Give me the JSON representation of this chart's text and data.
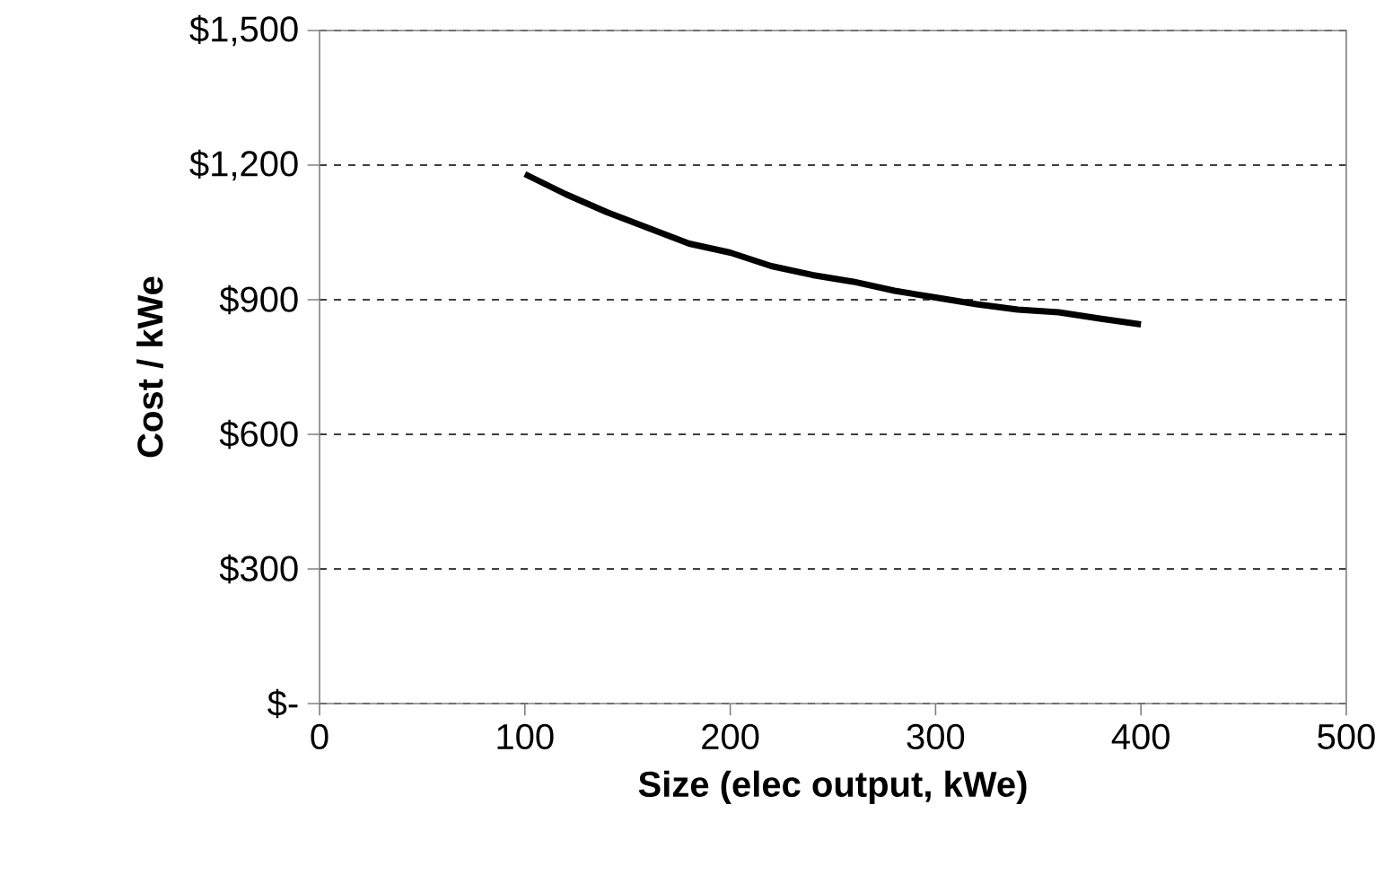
{
  "chart_data": {
    "type": "line",
    "xlabel": "Size (elec output, kWe)",
    "ylabel": "Cost / kWe",
    "x": [
      100,
      120,
      140,
      160,
      180,
      200,
      220,
      240,
      260,
      280,
      300,
      320,
      340,
      360,
      380,
      400
    ],
    "series": [
      {
        "color": "#000000",
        "line_style": "solid",
        "values": [
          1180,
          1135,
          1095,
          1060,
          1025,
          1005,
          975,
          955,
          940,
          920,
          905,
          890,
          878,
          872,
          858,
          845
        ]
      }
    ],
    "xlim": [
      0,
      500
    ],
    "ylim": [
      0,
      1500
    ],
    "xticks": [
      0,
      100,
      200,
      300,
      400,
      500
    ],
    "yticks": [
      {
        "value": 0,
        "label": "$-"
      },
      {
        "value": 300,
        "label": "$300"
      },
      {
        "value": 600,
        "label": "$600"
      },
      {
        "value": 900,
        "label": "$900"
      },
      {
        "value": 1200,
        "label": "$1,200"
      },
      {
        "value": 1500,
        "label": "$1,500"
      }
    ],
    "grid": "y"
  }
}
